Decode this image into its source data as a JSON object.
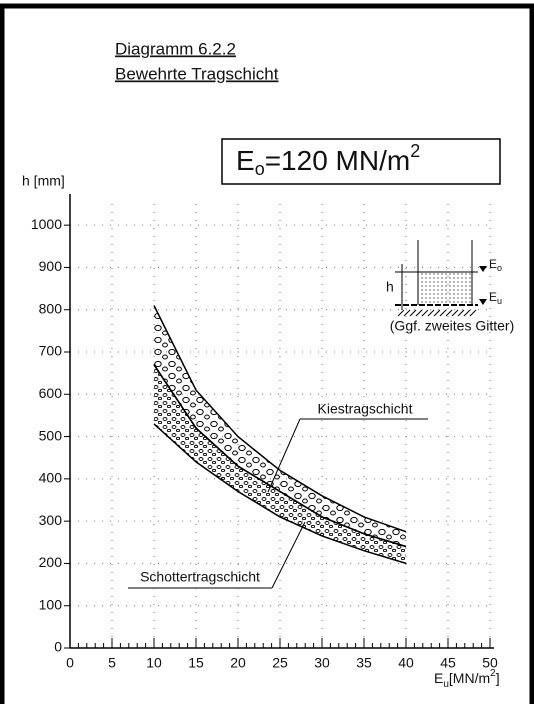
{
  "chart_data": {
    "type": "band",
    "title": "Diagramm 6.2.2",
    "subtitle": "Bewehrte Tragschicht",
    "box_label": {
      "symbol": "E",
      "sub": "o",
      "text": "=120 MN/m",
      "sup": "2"
    },
    "y_label": "h [mm]",
    "x_label": {
      "symbol": "E",
      "sub": "u",
      "text": "[MN/m",
      "sup": "2",
      "end": "]"
    },
    "x": [
      10,
      15,
      20,
      25,
      30,
      35,
      40
    ],
    "series": [
      {
        "name": "Kiestragschicht",
        "color": "#000000",
        "upper": [
          810,
          610,
          500,
          420,
          360,
          310,
          275
        ],
        "lower": [
          670,
          520,
          430,
          370,
          310,
          270,
          240
        ]
      },
      {
        "name": "Schottertragschicht",
        "color": "#000000",
        "upper": [
          670,
          520,
          430,
          370,
          310,
          270,
          240
        ],
        "lower": [
          530,
          440,
          370,
          310,
          265,
          230,
          200
        ]
      }
    ],
    "inset": {
      "h": "h",
      "top_symbol": "E",
      "top_sub": "o",
      "bottom_symbol": "E",
      "bottom_sub": "u",
      "note": "(Ggf. zweites Gitter)"
    },
    "xlim": [
      0,
      50
    ],
    "ylim": [
      0,
      1050
    ],
    "xticks": [
      0,
      5,
      10,
      15,
      20,
      25,
      30,
      35,
      40,
      45,
      50
    ],
    "yticks": [
      0,
      100,
      200,
      300,
      400,
      500,
      600,
      700,
      800,
      900,
      1000
    ],
    "grid": true
  }
}
